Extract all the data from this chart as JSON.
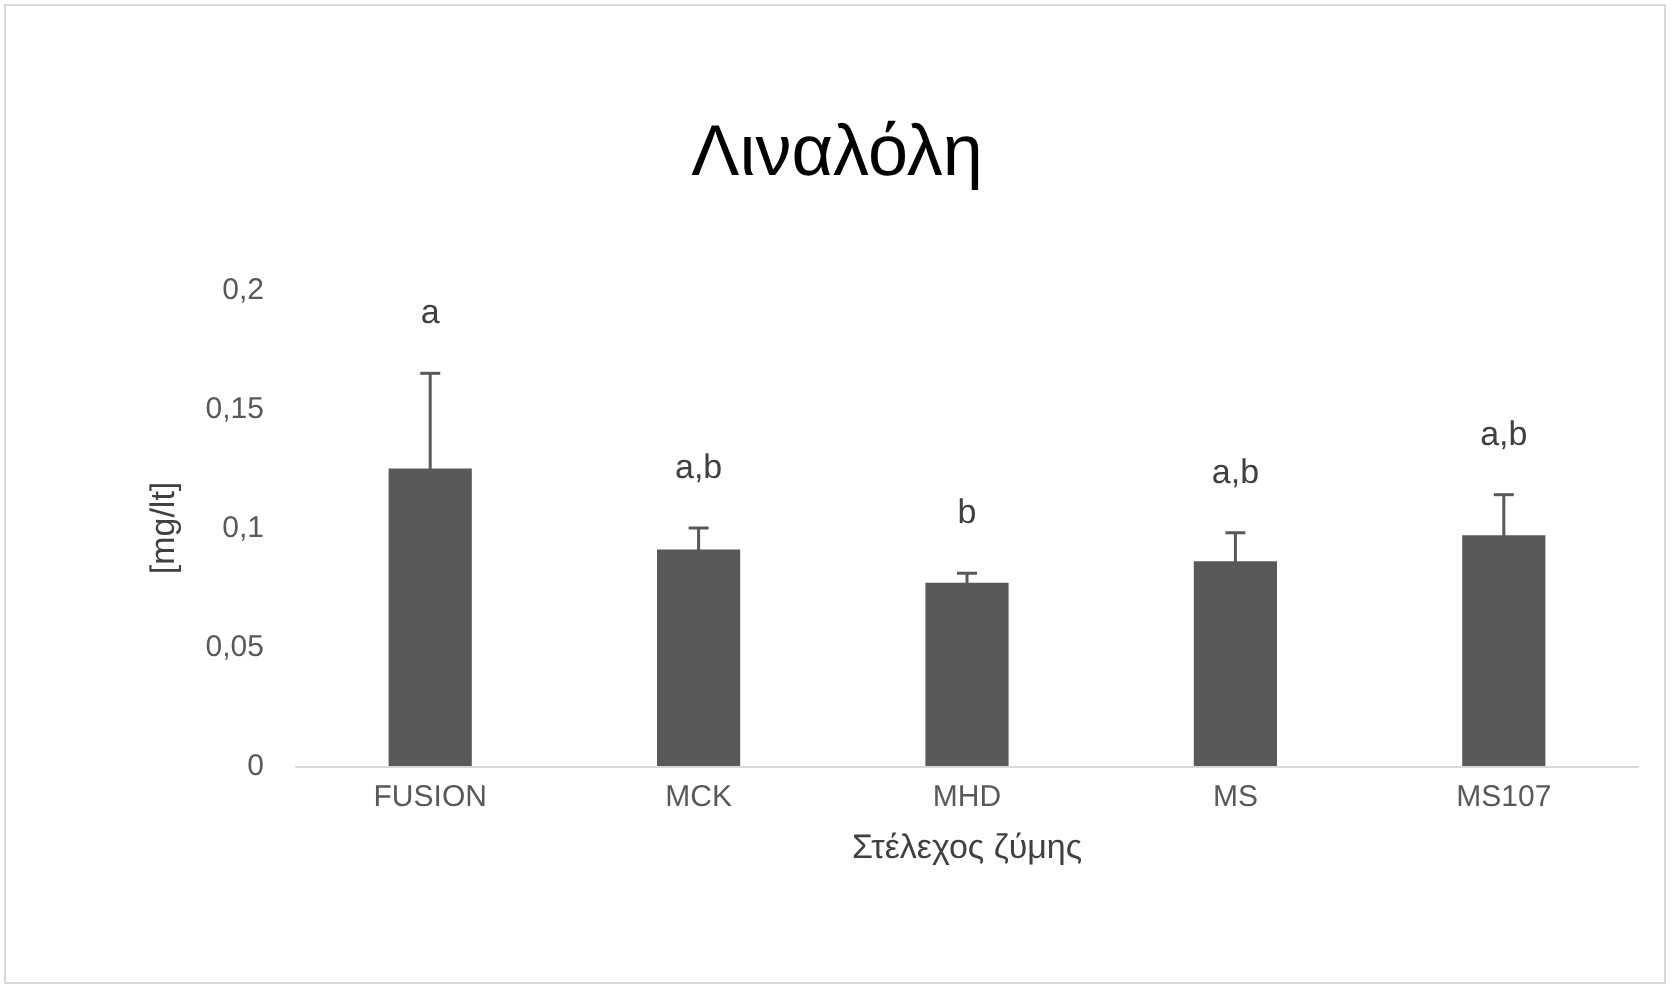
{
  "chart_data": {
    "type": "bar",
    "title": "Λιναλόλη",
    "xlabel": "Στέλεχος ζύμης",
    "ylabel": "[mg/lt]",
    "categories": [
      "FUSION",
      "MCK",
      "MHD",
      "MS",
      "MS107"
    ],
    "values": [
      0.125,
      0.091,
      0.077,
      0.086,
      0.097
    ],
    "errors": [
      0.04,
      0.009,
      0.004,
      0.012,
      0.017
    ],
    "color": "#595959",
    "ylim": [
      0,
      0.2
    ],
    "yticks": [
      {
        "value": 0,
        "label": "0"
      },
      {
        "value": 0.05,
        "label": "0,05"
      },
      {
        "value": 0.1,
        "label": "0,1"
      },
      {
        "value": 0.15,
        "label": "0,15"
      },
      {
        "value": 0.2,
        "label": "0,2"
      }
    ],
    "grid": false,
    "annotations": [
      {
        "text": "a",
        "x": "FUSION",
        "y": 0.165
      },
      {
        "text": "a,b",
        "x": "MCK",
        "y": 0.1
      },
      {
        "text": "b",
        "x": "MHD",
        "y": 0.081
      },
      {
        "text": "a,b",
        "x": "MS",
        "y": 0.098
      },
      {
        "text": "a,b",
        "x": "MS107",
        "y": 0.114
      }
    ]
  }
}
